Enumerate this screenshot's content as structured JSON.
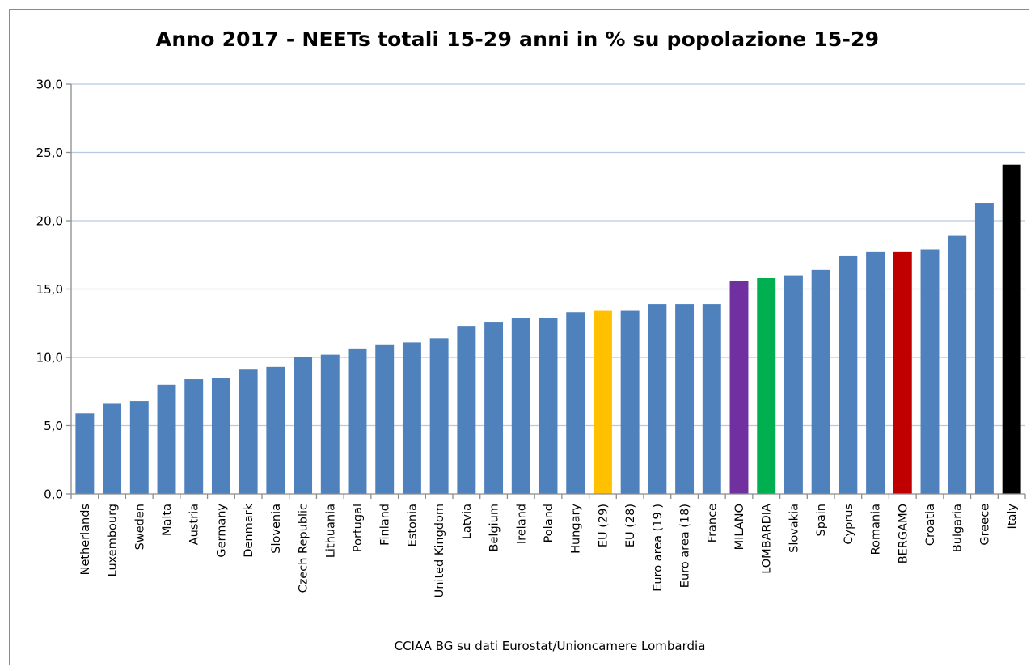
{
  "chart_data": {
    "type": "bar",
    "title": "Anno 2017 - NEETs totali 15-29 anni in % su popolazione 15-29",
    "source": "CCIAA BG su dati Eurostat/Unioncamere Lombardia",
    "xlabel": "",
    "ylabel": "",
    "ylim": [
      0,
      30
    ],
    "yticks": [
      "0,0",
      "5,0",
      "10,0",
      "15,0",
      "20,0",
      "25,0",
      "30,0"
    ],
    "grid": true,
    "legend": "none",
    "categories": [
      "Netherlands",
      "Luxembourg",
      "Sweden",
      "Malta",
      "Austria",
      "Germany",
      "Denmark",
      "Slovenia",
      "Czech Republic",
      "Lithuania",
      "Portugal",
      "Finland",
      "Estonia",
      "United Kingdom",
      "Latvia",
      "Belgium",
      "Ireland",
      "Poland",
      "Hungary",
      "EU (29)",
      "EU (28)",
      "Euro area (19 )",
      "Euro area (18)",
      "France",
      "MILANO",
      "LOMBARDIA",
      "Slovakia",
      "Spain",
      "Cyprus",
      "Romania",
      "BERGAMO",
      "Croatia",
      "Bulgaria",
      "Greece",
      "Italy"
    ],
    "values": [
      5.9,
      6.6,
      6.8,
      8.0,
      8.4,
      8.5,
      9.1,
      9.3,
      10.0,
      10.2,
      10.6,
      10.9,
      11.1,
      11.4,
      12.3,
      12.6,
      12.9,
      12.9,
      13.3,
      13.4,
      13.4,
      13.9,
      13.9,
      13.9,
      15.6,
      15.8,
      16.0,
      16.4,
      17.4,
      17.7,
      17.7,
      17.9,
      18.9,
      21.3,
      24.1
    ],
    "colors": {
      "default": "#4f81bd",
      "EU (29)": "#ffc000",
      "MILANO": "#7030a0",
      "LOMBARDIA": "#00b050",
      "BERGAMO": "#c00000",
      "Italy": "#000000"
    },
    "grid_color": "#b7c9e2",
    "axis_color": "#8c8c8c"
  }
}
